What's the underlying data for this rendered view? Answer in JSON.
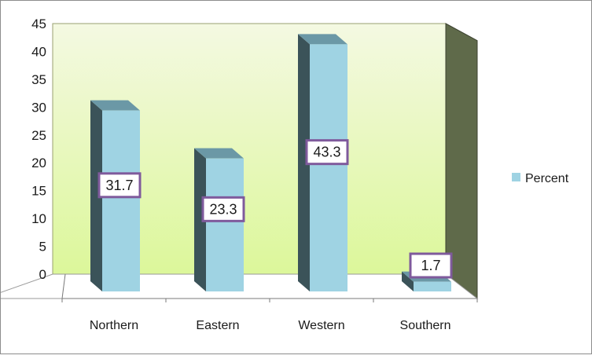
{
  "chart_data": {
    "type": "bar",
    "categories": [
      "Northern",
      "Eastern",
      "Western",
      "Southern"
    ],
    "series": [
      {
        "name": "Percent",
        "values": [
          31.7,
          23.3,
          43.3,
          1.7
        ]
      }
    ],
    "ylim": [
      0,
      45
    ],
    "yticks": [
      0,
      5,
      10,
      15,
      20,
      25,
      30,
      35,
      40,
      45
    ],
    "legend": "right",
    "grid": false,
    "data_labels": true,
    "three_d": true,
    "colors": {
      "bar_front": "#9fd3e3",
      "bar_side": "#3b5359",
      "bar_top": "#6b98a6",
      "back_wall_top": "#f4f9e2",
      "back_wall_bottom": "#dcf79a",
      "side_wall": "#5f6a4a",
      "floor": "#ffffff",
      "label_border": "#7f5a9c"
    }
  }
}
